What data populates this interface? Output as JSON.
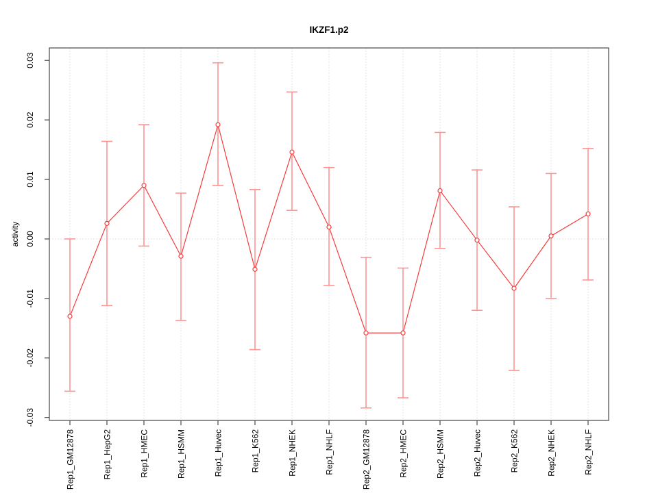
{
  "window": {
    "background": "#ffffff"
  },
  "chart_data": {
    "type": "line",
    "subtype": "points-with-error-bars",
    "title": "IKZF1.p2",
    "xlabel": "",
    "ylabel": "activity",
    "categories": [
      "Rep1_GM12878",
      "Rep1_HepG2",
      "Rep1_HMEC",
      "Rep1_HSMM",
      "Rep1_Huvec",
      "Rep1_K562",
      "Rep1_NHEK",
      "Rep1_NHLF",
      "Rep2_GM12878",
      "Rep2_HMEC",
      "Rep2_HSMM",
      "Rep2_Huvec",
      "Rep2_K562",
      "Rep2_NHEK",
      "Rep2_NHLF"
    ],
    "series": [
      {
        "name": "activity",
        "values": [
          -0.013,
          0.0026,
          0.009,
          -0.0029,
          0.0192,
          -0.0051,
          0.0146,
          0.002,
          -0.0158,
          -0.0158,
          0.0081,
          -0.0002,
          -0.0083,
          0.0005,
          0.0042
        ],
        "upper": [
          0.0,
          0.0164,
          0.0192,
          0.0077,
          0.0296,
          0.0083,
          0.0247,
          0.012,
          -0.0031,
          -0.0049,
          0.0179,
          0.0116,
          0.0054,
          0.011,
          0.0152
        ],
        "lower": [
          -0.0256,
          -0.0112,
          -0.0012,
          -0.0137,
          0.009,
          -0.0186,
          0.0048,
          -0.0078,
          -0.0284,
          -0.0267,
          -0.0016,
          -0.012,
          -0.0221,
          -0.01,
          -0.0069
        ]
      }
    ],
    "ylim": [
      -0.0305,
      0.0321
    ],
    "yticks": [
      -0.03,
      -0.02,
      -0.01,
      0.0,
      0.01,
      0.02,
      0.03
    ],
    "ytick_labels": [
      "-0.03",
      "-0.02",
      "-0.01",
      "0.00",
      "0.01",
      "0.02",
      "0.03"
    ],
    "grid": {
      "vertical_dotted_per_category": true,
      "horizontal_dotted_at_zero": true,
      "style": "dotted"
    },
    "legend": "none",
    "colors": {
      "series": "#f43b3b",
      "error_bars": "#ff9494",
      "marker_fill": "#ffffff",
      "grid": "#d9d9d9",
      "axis": "#555555",
      "text": "#000000"
    }
  }
}
